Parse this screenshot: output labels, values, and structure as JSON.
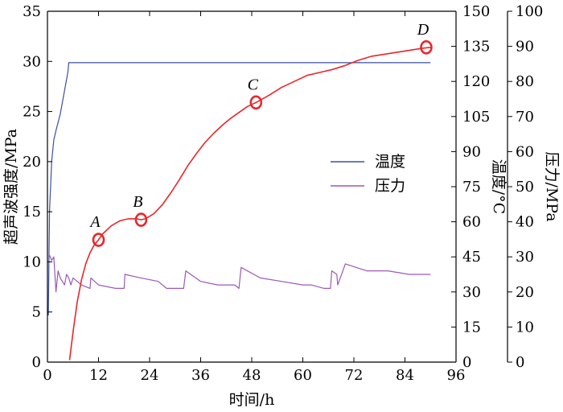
{
  "chart_data": {
    "type": "line",
    "xlabel": "时间/h",
    "xlim": [
      0,
      96
    ],
    "xticks": [
      0,
      12,
      24,
      36,
      48,
      60,
      72,
      84,
      96
    ],
    "axes": {
      "left": {
        "label": "超声波强度/MPa",
        "lim": [
          0,
          35
        ],
        "ticks": [
          0,
          5,
          10,
          15,
          20,
          25,
          30,
          35
        ]
      },
      "right1": {
        "label": "温度/°C",
        "lim": [
          0,
          150
        ],
        "ticks": [
          0,
          15,
          30,
          45,
          60,
          75,
          90,
          105,
          120,
          135,
          150
        ]
      },
      "right2": {
        "label": "压力/MPa",
        "lim": [
          0,
          100
        ],
        "ticks": [
          0,
          10,
          20,
          30,
          40,
          50,
          60,
          70,
          80,
          90,
          100
        ]
      }
    },
    "legend": {
      "placement": "center-right",
      "entries": [
        "温度",
        "压力"
      ]
    },
    "series": [
      {
        "name": "温度",
        "axis": "right1",
        "color": "#3a4fa0",
        "x": [
          0.2,
          0.5,
          1.0,
          1.5,
          2.0,
          3.0,
          4.0,
          4.8,
          5.0,
          8.0,
          12.0,
          20.0,
          30.0,
          40.0,
          50.0,
          60.0,
          70.0,
          80.0,
          90.0
        ],
        "y": [
          20,
          65,
          86,
          95,
          99,
          106,
          116,
          124,
          128,
          128,
          128,
          128,
          128,
          128,
          128,
          128,
          128,
          128,
          128
        ]
      },
      {
        "name": "压力",
        "axis": "right2",
        "color": "#9b59b6",
        "x": [
          0.3,
          1.0,
          1.5,
          2.0,
          2.5,
          3.0,
          3.5,
          4.0,
          4.5,
          5.0,
          5.5,
          6.0,
          8.0,
          10.0,
          10.2,
          12.0,
          16.0,
          18.0,
          18.2,
          22.0,
          26.0,
          28.0,
          30.0,
          32.0,
          32.5,
          36.0,
          40.0,
          44.0,
          45.0,
          45.5,
          50.0,
          55.0,
          60.0,
          62.0,
          65.0,
          66.5,
          66.8,
          68.0,
          68.2,
          70.0,
          75.0,
          80.0,
          85.0,
          90.0
        ],
        "y": [
          31,
          29,
          30,
          20,
          26,
          24,
          23,
          22,
          25,
          24,
          22,
          24,
          22,
          21,
          24,
          22,
          21,
          21,
          25,
          24,
          23,
          21,
          21,
          21,
          26,
          23,
          22,
          22,
          21,
          27,
          24,
          23,
          22,
          22,
          21,
          21,
          26,
          25,
          22,
          28,
          26,
          26,
          25,
          25
        ]
      },
      {
        "name": "超声波强度",
        "axis": "left",
        "color": "#e8272b",
        "x": [
          5.2,
          6.0,
          7.0,
          8.0,
          9.0,
          10.0,
          11.0,
          12.0,
          13.0,
          15.0,
          17.0,
          19.0,
          21.0,
          22.0,
          23.0,
          25.0,
          27.0,
          29.0,
          31.0,
          33.0,
          35.0,
          37.0,
          39.0,
          41.0,
          43.0,
          45.0,
          47.0,
          49.0,
          52.0,
          55.0,
          58.0,
          61.0,
          64.0,
          67.0,
          70.0,
          73.0,
          76.0,
          79.0,
          82.0,
          85.0,
          88.0,
          90.0
        ],
        "y": [
          0.2,
          3.0,
          6.0,
          8.2,
          9.8,
          10.9,
          11.7,
          12.2,
          12.8,
          13.6,
          14.1,
          14.3,
          14.3,
          14.2,
          14.3,
          14.8,
          15.7,
          16.9,
          18.2,
          19.6,
          20.8,
          21.9,
          22.8,
          23.6,
          24.3,
          24.9,
          25.5,
          25.9,
          26.6,
          27.4,
          28.0,
          28.6,
          28.9,
          29.2,
          29.6,
          30.1,
          30.5,
          30.7,
          30.9,
          31.1,
          31.3,
          31.4
        ]
      }
    ],
    "points": [
      {
        "label": "A",
        "x": 12,
        "y": 12.2
      },
      {
        "label": "B",
        "x": 22,
        "y": 14.2
      },
      {
        "label": "C",
        "x": 49,
        "y": 25.9
      },
      {
        "label": "D",
        "x": 89,
        "y": 31.4
      }
    ]
  }
}
